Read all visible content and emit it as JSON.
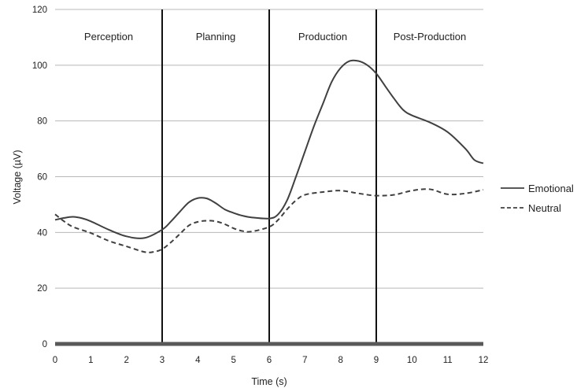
{
  "chart_data": {
    "type": "line",
    "xlabel": "Time (s)",
    "ylabel": "Voltage (µV)",
    "xlim": [
      0,
      12
    ],
    "ylim": [
      0,
      120
    ],
    "x_ticks": [
      "0",
      "1",
      "2",
      "3",
      "4",
      "5",
      "6",
      "7",
      "8",
      "9",
      "10",
      "11",
      "12"
    ],
    "y_ticks": [
      "0",
      "20",
      "40",
      "60",
      "80",
      "100",
      "120"
    ],
    "grid": "horizontal",
    "legend_position": "right",
    "phases": [
      {
        "label": "Perception",
        "start": 0,
        "end": 3
      },
      {
        "label": "Planning",
        "start": 3,
        "end": 6
      },
      {
        "label": "Production",
        "start": 6,
        "end": 9
      },
      {
        "label": "Post-Production",
        "start": 9,
        "end": 12
      }
    ],
    "phase_boundaries": [
      3,
      6,
      9
    ],
    "series": [
      {
        "name": "Emotional",
        "style": "solid",
        "color": "#404040",
        "x": [
          0,
          0.25,
          0.5,
          0.75,
          1,
          1.5,
          2,
          2.5,
          3,
          3.25,
          3.5,
          3.75,
          4,
          4.25,
          4.5,
          4.75,
          5,
          5.25,
          5.5,
          6,
          6.25,
          6.5,
          6.75,
          7,
          7.25,
          7.5,
          7.75,
          8,
          8.25,
          8.5,
          8.75,
          9,
          9.25,
          9.5,
          9.75,
          10,
          10.5,
          11,
          11.5,
          11.75,
          12
        ],
        "y": [
          44.5,
          45.2,
          45.6,
          45.1,
          44,
          41,
          38.6,
          38,
          41,
          44,
          47.5,
          50.8,
          52.3,
          52.2,
          50.5,
          48.3,
          47,
          46,
          45.4,
          45,
          46.5,
          51.5,
          60,
          69,
          78,
          86,
          94,
          99,
          101.5,
          101.5,
          100,
          97,
          92.5,
          88,
          84,
          82,
          79.5,
          76,
          70,
          66,
          64.8
        ]
      },
      {
        "name": "Neutral",
        "style": "dashed",
        "color": "#404040",
        "x": [
          0,
          0.25,
          0.5,
          1,
          1.5,
          2,
          2.5,
          2.75,
          3,
          3.25,
          3.5,
          3.75,
          4,
          4.25,
          4.5,
          4.75,
          5,
          5.25,
          5.5,
          6,
          6.25,
          6.5,
          6.75,
          7,
          7.5,
          8,
          8.5,
          9,
          9.5,
          10,
          10.5,
          11,
          11.5,
          12
        ],
        "y": [
          46.5,
          44,
          42,
          39.8,
          37,
          35,
          33,
          33,
          34,
          36.5,
          39.5,
          42.5,
          43.8,
          44.2,
          44,
          43,
          41.5,
          40.5,
          40.3,
          42,
          44.5,
          48.3,
          51.5,
          53.5,
          54.5,
          55,
          54,
          53.2,
          53.5,
          55,
          55.5,
          53.7,
          54,
          55.3
        ]
      }
    ]
  }
}
